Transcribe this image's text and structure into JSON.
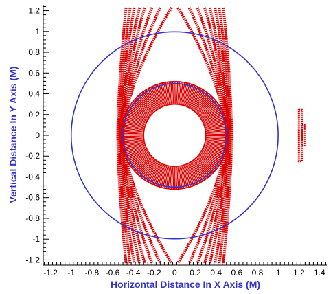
{
  "colors": {
    "circle": "#3333cc",
    "mesh": "#dd0000",
    "axis_title": "#3333cc",
    "axis": "#000000"
  },
  "chart_data": {
    "type": "scatter",
    "xlabel": "Horizontal Distance In X Axis (M)",
    "ylabel": "Vertical Distance In Y Axis (M)",
    "xlim": [
      -1.27,
      1.47
    ],
    "ylim": [
      -1.25,
      1.25
    ],
    "x_ticks": [
      {
        "v": -1.2,
        "label": "-1.2"
      },
      {
        "v": -1.0,
        "label": "-1"
      },
      {
        "v": -0.8,
        "label": "-0.8"
      },
      {
        "v": -0.6,
        "label": "-0.6"
      },
      {
        "v": -0.4,
        "label": "-0.4"
      },
      {
        "v": -0.2,
        "label": "-0.2"
      },
      {
        "v": 0.0,
        "label": "0"
      },
      {
        "v": 0.2,
        "label": "0.2"
      },
      {
        "v": 0.4,
        "label": "0.4"
      },
      {
        "v": 0.6,
        "label": "0.6"
      },
      {
        "v": 0.8,
        "label": "0.8"
      },
      {
        "v": 1.0,
        "label": "1"
      },
      {
        "v": 1.2,
        "label": "1.2"
      },
      {
        "v": 1.4,
        "label": "1.4"
      }
    ],
    "y_ticks": [
      {
        "v": 1.2,
        "label": "1.2"
      },
      {
        "v": 1.0,
        "label": "1"
      },
      {
        "v": 0.8,
        "label": "0.8"
      },
      {
        "v": 0.6,
        "label": "0.6"
      },
      {
        "v": 0.4,
        "label": "0.4"
      },
      {
        "v": 0.2,
        "label": "0.2"
      },
      {
        "v": 0.0,
        "label": "0"
      },
      {
        "v": -0.2,
        "label": "-0.2"
      },
      {
        "v": -0.4,
        "label": "-0.4"
      },
      {
        "v": -0.6,
        "label": "-0.6"
      },
      {
        "v": -0.8,
        "label": "-0.8"
      },
      {
        "v": -1.0,
        "label": "-1"
      },
      {
        "v": -1.2,
        "label": "-1.2"
      }
    ],
    "circles": [
      {
        "cx": 0.0,
        "cy": 0.0,
        "r": 1.0
      },
      {
        "cx": 0.0,
        "cy": 0.0,
        "r": 0.5
      }
    ],
    "ring_mesh": {
      "r_inner": 0.3,
      "r_outer": 0.52
    },
    "streamlines_x_at_top": [
      -0.47,
      -0.43,
      -0.39,
      -0.34,
      -0.29,
      -0.22,
      -0.14,
      -0.03,
      0.03,
      0.14,
      0.22,
      0.29,
      0.34,
      0.39,
      0.43,
      0.47
    ],
    "streamlines_x_at_center": [
      -0.55,
      -0.54,
      -0.53,
      -0.52,
      -0.51,
      -0.505,
      -0.5,
      -0.5,
      0.5,
      0.5,
      0.505,
      0.51,
      0.52,
      0.53,
      0.54,
      0.55
    ],
    "y_top": 1.23,
    "y_bottom": -1.23,
    "side_block": {
      "x": [
        1.2,
        1.23
      ],
      "y": [
        -0.25,
        0.25
      ]
    }
  }
}
